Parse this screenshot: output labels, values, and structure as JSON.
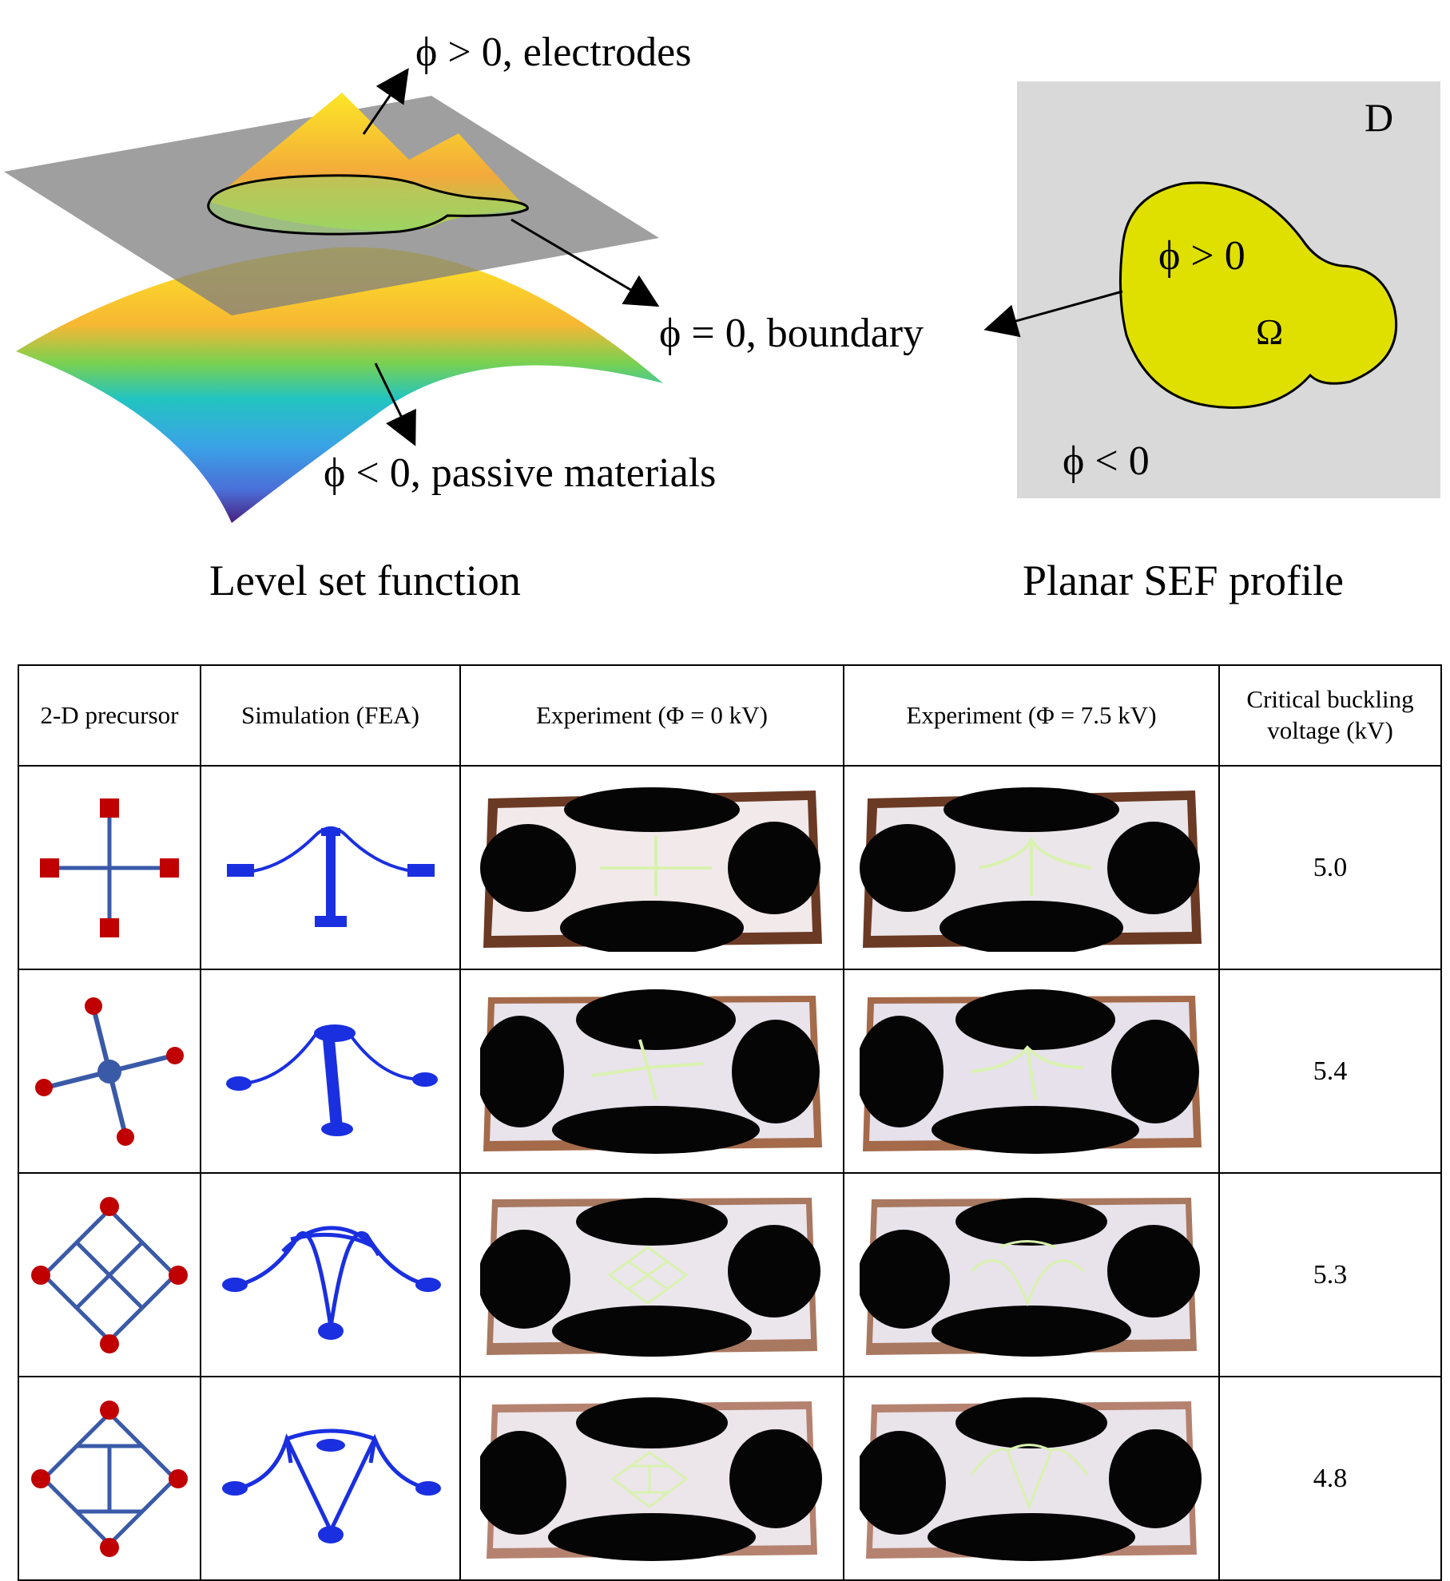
{
  "top": {
    "level_set": {
      "label_electrodes": "ϕ > 0, electrodes",
      "label_boundary": "ϕ = 0, boundary",
      "label_passive": "ϕ < 0, passive materials",
      "caption": "Level set function"
    },
    "planar": {
      "domain_label": "D",
      "inside_label": "ϕ > 0",
      "omega_label": "Ω",
      "outside_label": "ϕ < 0",
      "caption": "Planar SEF profile"
    }
  },
  "table": {
    "headers": [
      "2-D precursor",
      "Simulation (FEA)",
      "Experiment (Φ = 0 kV)",
      "Experiment (Φ = 7.5 kV)",
      "Critical buckling voltage (kV)"
    ],
    "rows": [
      {
        "shape": "cross",
        "voltage": "5.0"
      },
      {
        "shape": "pinwheel",
        "voltage": "5.4"
      },
      {
        "shape": "diamond-grid",
        "voltage": "5.3"
      },
      {
        "shape": "diamond-i",
        "voltage": "4.8"
      }
    ]
  },
  "colors": {
    "precursor_blue": "#3a5aa8",
    "precursor_red": "#c00000",
    "fea_blue": "#1a2fe0",
    "electrode_yellow": "#e0e000",
    "domain_gray": "#d9d9d9"
  }
}
